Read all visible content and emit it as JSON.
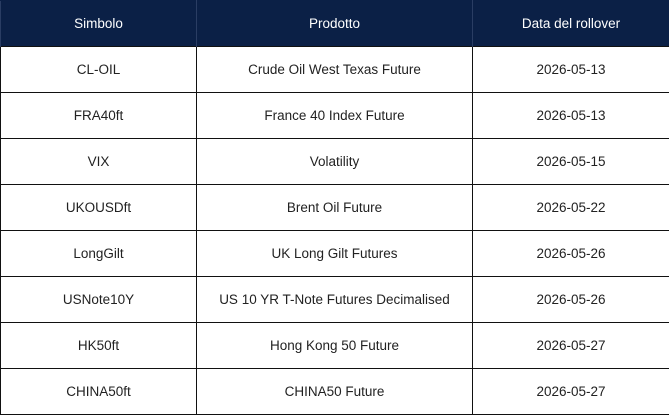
{
  "table": {
    "headers": [
      "Simbolo",
      "Prodotto",
      "Data del rollover"
    ],
    "rows": [
      [
        "CL-OIL",
        "Crude Oil West Texas Future",
        "2026-05-13"
      ],
      [
        "FRA40ft",
        "France 40 Index Future",
        "2026-05-13"
      ],
      [
        "VIX",
        "Volatility",
        "2026-05-15"
      ],
      [
        "UKOUSDft",
        "Brent Oil Future",
        "2026-05-22"
      ],
      [
        "LongGilt",
        "UK Long Gilt Futures",
        "2026-05-26"
      ],
      [
        "USNote10Y",
        "US 10 YR T-Note Futures Decimalised",
        "2026-05-26"
      ],
      [
        "HK50ft",
        "Hong Kong 50 Future",
        "2026-05-27"
      ],
      [
        "CHINA50ft",
        "CHINA50 Future",
        "2026-05-27"
      ]
    ]
  },
  "colors": {
    "header_background": "#0b2046",
    "header_text": "#ffffff",
    "border": "#111111"
  }
}
